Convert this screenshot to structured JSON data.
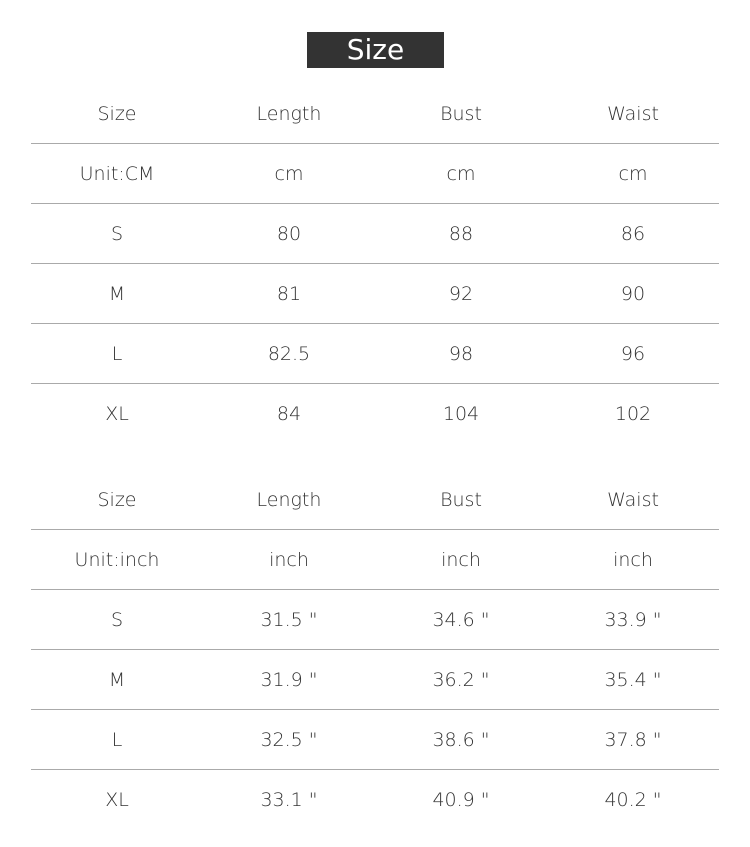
{
  "title": "Size",
  "tables": [
    {
      "header": [
        "Size",
        "Length",
        "Bust",
        "Waist"
      ],
      "rows": [
        [
          "Unit:CM",
          "cm",
          "cm",
          "cm"
        ],
        [
          "S",
          "80",
          "88",
          "86"
        ],
        [
          "M",
          "81",
          "92",
          "90"
        ],
        [
          "L",
          "82.5",
          "98",
          "96"
        ],
        [
          "XL",
          "84",
          "104",
          "102"
        ]
      ]
    },
    {
      "header": [
        "Size",
        "Length",
        "Bust",
        "Waist"
      ],
      "rows": [
        [
          "Unit:inch",
          "inch",
          "inch",
          "inch"
        ],
        [
          "S",
          "31.5 \"",
          "34.6 \"",
          "33.9 \""
        ],
        [
          "M",
          "31.9 \"",
          "36.2 \"",
          "35.4 \""
        ],
        [
          "L",
          "32.5 \"",
          "38.6 \"",
          "37.8 \""
        ],
        [
          "XL",
          "33.1 \"",
          "40.9 \"",
          "40.2 \""
        ]
      ]
    }
  ]
}
